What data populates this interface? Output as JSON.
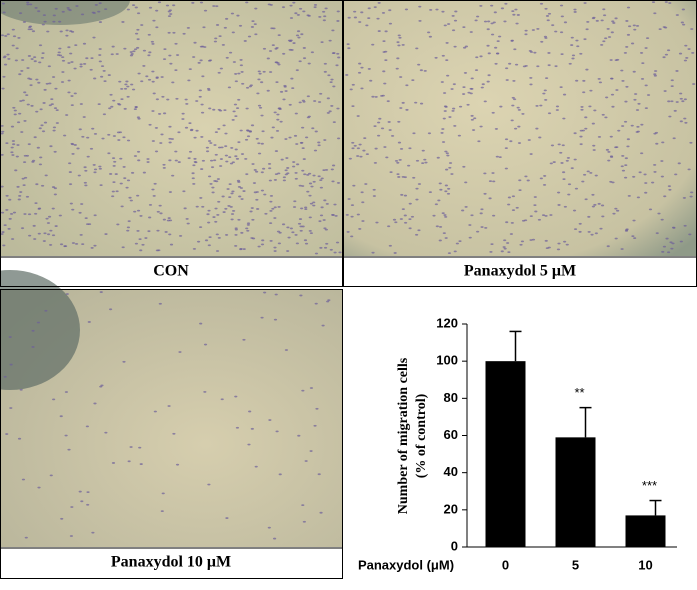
{
  "panels": [
    {
      "label": "CON"
    },
    {
      "label": "Panaxydol 5 μM"
    },
    {
      "label": "Panaxydol 10 μM"
    }
  ],
  "chart_data": {
    "type": "bar",
    "y_label": [
      "Number  of migration  cells",
      "(% of control)"
    ],
    "x_label": "Panaxydol  (μM)",
    "categories": [
      "0",
      "5",
      "10"
    ],
    "values": [
      100,
      59,
      17
    ],
    "errors": [
      16,
      16,
      8
    ],
    "annotations": [
      null,
      "**",
      "***"
    ],
    "color": "#000000",
    "ylim": [
      0,
      120
    ],
    "yticks": [
      0,
      20,
      40,
      60,
      80,
      100,
      120
    ]
  }
}
